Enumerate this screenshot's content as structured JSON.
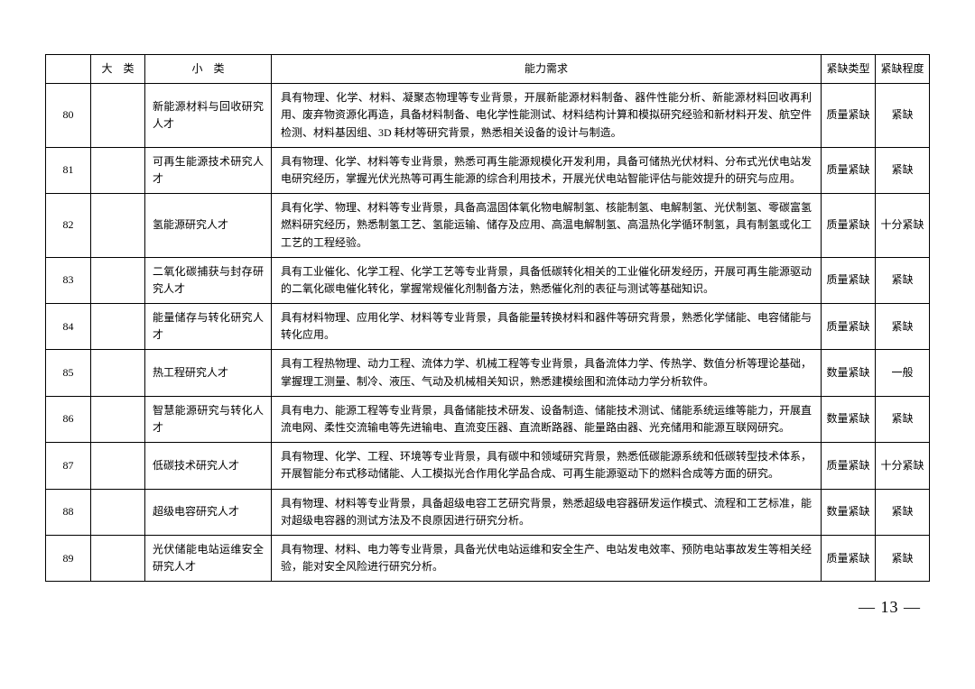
{
  "table": {
    "headers": {
      "major": "大　类",
      "minor": "小　类",
      "requirement": "能力需求",
      "shortage_type": "紧缺类型",
      "shortage_degree": "紧缺程度"
    },
    "rows": [
      {
        "idx": "80",
        "major": "",
        "minor": "新能源材料与回收研究人才",
        "req": "具有物理、化学、材料、凝聚态物理等专业背景，开展新能源材料制备、器件性能分析、新能源材料回收再利用、废弃物资源化再造，具备材料制备、电化学性能测试、材料结构计算和模拟研究经验和新材料开发、航空件检测、材料基因组、3D 耗材等研究背景，熟悉相关设备的设计与制造。",
        "type": "质量紧缺",
        "deg": "紧缺"
      },
      {
        "idx": "81",
        "major": "",
        "minor": "可再生能源技术研究人才",
        "req": "具有物理、化学、材料等专业背景，熟悉可再生能源规模化开发利用，具备可储热光伏材料、分布式光伏电站发电研究经历，掌握光伏光热等可再生能源的综合利用技术，开展光伏电站智能评估与能效提升的研究与应用。",
        "type": "质量紧缺",
        "deg": "紧缺"
      },
      {
        "idx": "82",
        "major": "",
        "minor": "氢能源研究人才",
        "req": "具有化学、物理、材料等专业背景，具备高温固体氧化物电解制氢、核能制氢、电解制氢、光伏制氢、零碳富氢燃料研究经历，熟悉制氢工艺、氢能运输、储存及应用、高温电解制氢、高温热化学循环制氢，具有制氢或化工工艺的工程经验。",
        "type": "质量紧缺",
        "deg": "十分紧缺"
      },
      {
        "idx": "83",
        "major": "",
        "minor": "二氧化碳捕获与封存研究人才",
        "req": "具有工业催化、化学工程、化学工艺等专业背景，具备低碳转化相关的工业催化研发经历，开展可再生能源驱动的二氧化碳电催化转化，掌握常规催化剂制备方法，熟悉催化剂的表征与测试等基础知识。",
        "type": "质量紧缺",
        "deg": "紧缺"
      },
      {
        "idx": "84",
        "major": "",
        "minor": "能量储存与转化研究人才",
        "req": "具有材料物理、应用化学、材料等专业背景，具备能量转换材料和器件等研究背景，熟悉化学储能、电容储能与转化应用。",
        "type": "质量紧缺",
        "deg": "紧缺"
      },
      {
        "idx": "85",
        "major": "",
        "minor": "热工程研究人才",
        "req": "具有工程热物理、动力工程、流体力学、机械工程等专业背景，具备流体力学、传热学、数值分析等理论基础，掌握理工测量、制冷、液压、气动及机械相关知识，熟悉建模绘图和流体动力学分析软件。",
        "type": "数量紧缺",
        "deg": "一般"
      },
      {
        "idx": "86",
        "major": "",
        "minor": "智慧能源研究与转化人才",
        "req": "具有电力、能源工程等专业背景，具备储能技术研发、设备制造、储能技术测试、储能系统运维等能力，开展直流电网、柔性交流输电等先进输电、直流变压器、直流断路器、能量路由器、光充储用和能源互联网研究。",
        "type": "数量紧缺",
        "deg": "紧缺"
      },
      {
        "idx": "87",
        "major": "",
        "minor": "低碳技术研究人才",
        "req": "具有物理、化学、工程、环境等专业背景，具有碳中和领域研究背景，熟悉低碳能源系统和低碳转型技术体系，开展智能分布式移动储能、人工模拟光合作用化学品合成、可再生能源驱动下的燃料合成等方面的研究。",
        "type": "质量紧缺",
        "deg": "十分紧缺"
      },
      {
        "idx": "88",
        "major": "",
        "minor": "超级电容研究人才",
        "req": "具有物理、材料等专业背景，具备超级电容工艺研究背景，熟悉超级电容器研发运作模式、流程和工艺标准，能对超级电容器的测试方法及不良原因进行研究分析。",
        "type": "数量紧缺",
        "deg": "紧缺"
      },
      {
        "idx": "89",
        "major": "",
        "minor": "光伏储能电站运维安全研究人才",
        "req": "具有物理、材料、电力等专业背景，具备光伏电站运维和安全生产、电站发电效率、预防电站事故发生等相关经验，能对安全风险进行研究分析。",
        "type": "质量紧缺",
        "deg": "紧缺"
      }
    ]
  },
  "page_number": "— 13 —"
}
